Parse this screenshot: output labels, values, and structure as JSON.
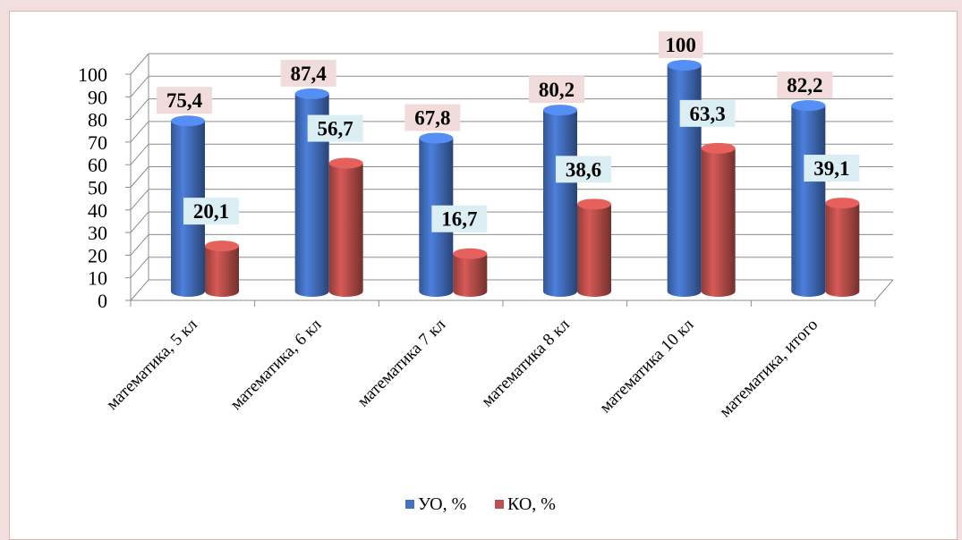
{
  "chart_data": {
    "type": "bar",
    "categories": [
      "математика, 5 кл",
      "математика, 6 кл",
      "математика 7 кл",
      "математика 8 кл",
      "математика 10 кл",
      "математика, итого"
    ],
    "series": [
      {
        "name": "УО, %",
        "values": [
          75.4,
          87.4,
          67.8,
          80.2,
          100,
          82.2
        ],
        "labels": [
          "75,4",
          "87,4",
          "67,8",
          "80,2",
          "100",
          "82,2"
        ]
      },
      {
        "name": "КО, %",
        "values": [
          20.1,
          56.7,
          16.7,
          38.6,
          63.3,
          39.1
        ],
        "labels": [
          "20,1",
          "56,7",
          "16,7",
          "38,6",
          "63,3",
          "39,1"
        ]
      }
    ],
    "yticks": [
      "0",
      "10",
      "20",
      "30",
      "40",
      "50",
      "60",
      "70",
      "80",
      "90",
      "100"
    ],
    "ylim": [
      0,
      100
    ],
    "grid": true,
    "legend_position": "bottom",
    "colors": {
      "uo": "#4472c4",
      "ko": "#c0504d",
      "uo_label_bg": "#f2dcdb",
      "ko_label_bg": "#dbeef4"
    }
  }
}
